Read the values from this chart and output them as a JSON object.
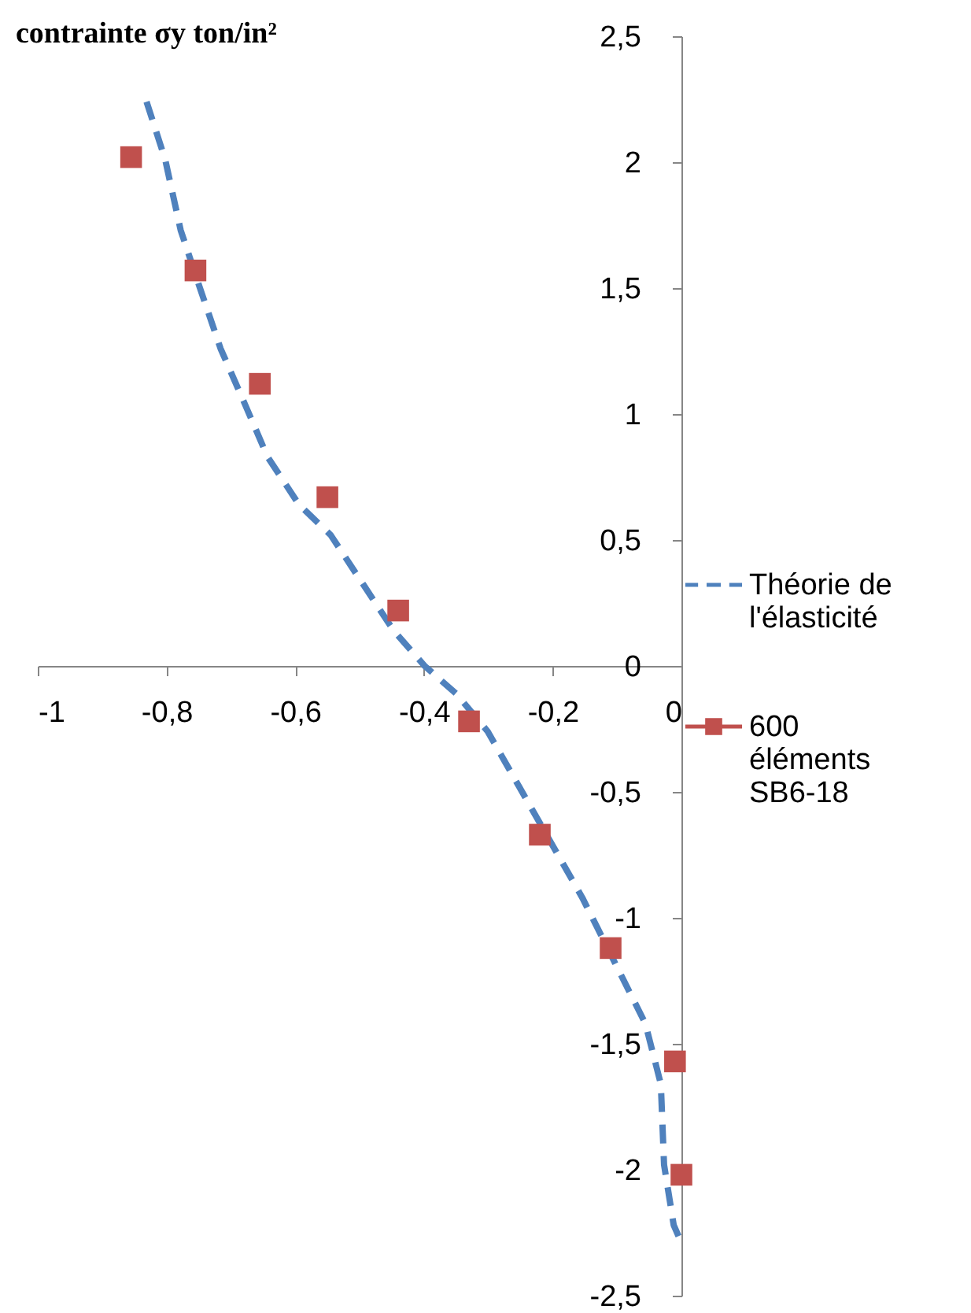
{
  "chart_data": {
    "type": "line",
    "ylabel": "contrainte σy ton/in²",
    "xlim": [
      -1,
      0
    ],
    "xticks": [
      -1,
      {
        "value": -0.8,
        "label": "-0,8"
      },
      {
        "value": -0.6,
        "label": "-0,6"
      },
      {
        "value": -0.4,
        "label": "-0,4"
      },
      {
        "value": -0.2,
        "label": "-0,2"
      },
      0
    ],
    "ylim": [
      -2.5,
      2.5
    ],
    "yticks": [
      {
        "value": -2.5,
        "label": "-2,5"
      },
      -2,
      {
        "value": -1.5,
        "label": "-1,5"
      },
      -1,
      {
        "value": -0.5,
        "label": "-0,5"
      },
      0,
      {
        "value": 0.5,
        "label": "0,5"
      },
      1,
      {
        "value": 1.5,
        "label": "1,5"
      },
      2,
      {
        "value": 2.5,
        "label": "2,5"
      }
    ],
    "grid": false,
    "legend": "right",
    "series": [
      {
        "name": "Théorie de l'élasticité",
        "color": "#4f81bd",
        "line_style": "dashed",
        "marker": "none",
        "x": [
          -0.831,
          -0.802,
          -0.778,
          -0.748,
          -0.716,
          -0.68,
          -0.643,
          -0.594,
          -0.545,
          -0.496,
          -0.447,
          -0.399,
          -0.35,
          -0.301,
          -0.252,
          -0.203,
          -0.154,
          -0.105,
          -0.056,
          -0.032,
          -0.027,
          -0.012,
          0
        ],
        "values": [
          2.24,
          2.01,
          1.73,
          1.5,
          1.26,
          1.05,
          0.83,
          0.64,
          0.52,
          0.33,
          0.14,
          0,
          -0.11,
          -0.26,
          -0.48,
          -0.7,
          -0.92,
          -1.17,
          -1.42,
          -1.66,
          -1.98,
          -2.22,
          -2.29
        ]
      },
      {
        "name": "600 éléments SB6-18",
        "type": "scatter",
        "color": "#c0504d",
        "marker": "square",
        "x": [
          -0.855,
          -0.755,
          -0.655,
          -0.55,
          -0.44,
          -0.33,
          -0.22,
          -0.11,
          -0.01,
          0
        ],
        "values": [
          2.02,
          1.57,
          1.12,
          0.67,
          0.22,
          -0.22,
          -0.67,
          -1.12,
          -1.57,
          -2.02
        ]
      }
    ]
  }
}
